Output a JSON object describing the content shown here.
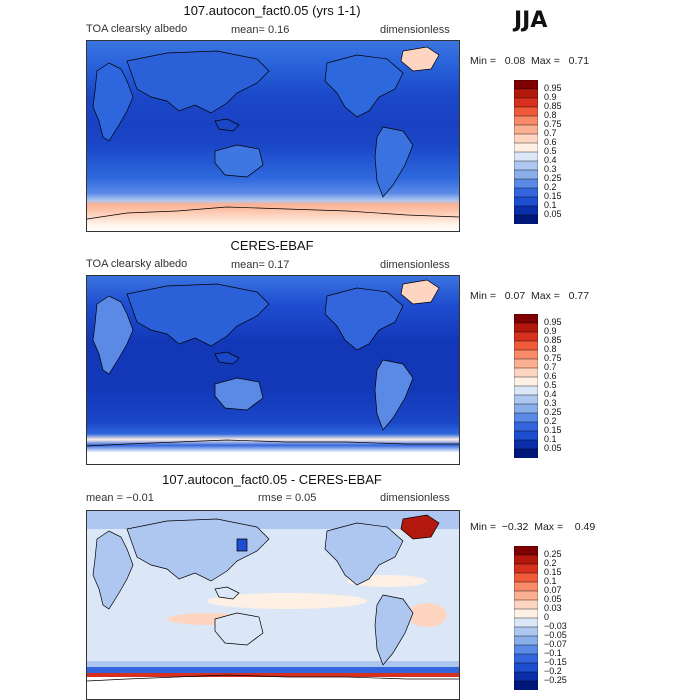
{
  "season": "JJA",
  "panels": [
    {
      "id": "model",
      "title": "107.autocon_fact0.05 (yrs 1-1)",
      "variable": "TOA clearsky albedo",
      "stat1": "mean=   0.16",
      "stat2": "",
      "units": "dimensionless",
      "minmax": "Min =   0.08  Max =   0.71",
      "colorbar_labels": [
        "0.95",
        "0.9",
        "0.85",
        "0.8",
        "0.75",
        "0.7",
        "0.6",
        "0.5",
        "0.4",
        "0.3",
        "0.25",
        "0.2",
        "0.15",
        "0.1",
        "0.05"
      ],
      "colorbar_colors": [
        "#7f0000",
        "#b2180b",
        "#d7301f",
        "#ee5a3a",
        "#f98a68",
        "#fcb092",
        "#fdd5c0",
        "#fff0e6",
        "#dbe7f7",
        "#aec7f0",
        "#8aaeea",
        "#5b8ae6",
        "#3366dd",
        "#1d4ed0",
        "#0a2ea8",
        "#00177a"
      ]
    },
    {
      "id": "obs",
      "title": "CERES-EBAF",
      "variable": "TOA clearsky albedo",
      "stat1": "mean=   0.17",
      "stat2": "",
      "units": "dimensionless",
      "minmax": "Min =   0.07  Max =   0.77",
      "colorbar_labels": [
        "0.95",
        "0.9",
        "0.85",
        "0.8",
        "0.75",
        "0.7",
        "0.6",
        "0.5",
        "0.4",
        "0.3",
        "0.25",
        "0.2",
        "0.15",
        "0.1",
        "0.05"
      ],
      "colorbar_colors": [
        "#7f0000",
        "#b2180b",
        "#d7301f",
        "#ee5a3a",
        "#f98a68",
        "#fcb092",
        "#fdd5c0",
        "#fff0e6",
        "#dbe7f7",
        "#aec7f0",
        "#8aaeea",
        "#5b8ae6",
        "#3366dd",
        "#1d4ed0",
        "#0a2ea8",
        "#00177a"
      ]
    },
    {
      "id": "diff",
      "title": "107.autocon_fact0.05 - CERES-EBAF",
      "variable": "",
      "stat1": "mean =  −0.01",
      "stat2": "rmse =   0.05",
      "units": "dimensionless",
      "minmax": "Min =  −0.32  Max =    0.49",
      "colorbar_labels": [
        "0.25",
        "0.2",
        "0.15",
        "0.1",
        "0.07",
        "0.05",
        "0.03",
        "0",
        "−0.03",
        "−0.05",
        "−0.07",
        "−0.1",
        "−0.15",
        "−0.2",
        "−0.25"
      ],
      "colorbar_colors": [
        "#7f0000",
        "#b2180b",
        "#d7301f",
        "#ee5a3a",
        "#f98a68",
        "#fcb092",
        "#fdd5c0",
        "#fff0e6",
        "#dbe7f7",
        "#aec7f0",
        "#8aaeea",
        "#5b8ae6",
        "#3366dd",
        "#1d4ed0",
        "#0a2ea8",
        "#00177a"
      ]
    }
  ]
}
